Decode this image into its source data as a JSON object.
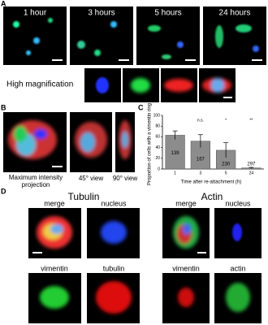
{
  "figure": {
    "panel_labels": [
      "A",
      "B",
      "C",
      "D"
    ],
    "time_labels": [
      "1 hour",
      "3 hours",
      "5 hours",
      "24 hours"
    ],
    "high_magnification": "High magnification",
    "view_labels": [
      "Maximum intensity projection",
      "45° view",
      "90° view"
    ],
    "tubulin": {
      "title": "Tubulin",
      "labels": [
        "merge",
        "nucleus",
        "vimentin",
        "tubulin"
      ]
    },
    "actin": {
      "title": "Actin",
      "labels": [
        "merge",
        "nucleus",
        "vimentin",
        "actin"
      ]
    }
  },
  "chart_data": {
    "type": "bar",
    "y_label": "Proportion of cells with a vimentin ring (%)",
    "x_label": "Time after re-attachment (h)",
    "categories": [
      "1",
      "3",
      "5",
      "24"
    ],
    "values": [
      63,
      52,
      35,
      2
    ],
    "errors": [
      8,
      12,
      14,
      1
    ],
    "n": [
      139,
      167,
      230,
      297
    ],
    "significance": [
      null,
      "n.s.",
      "*",
      "**"
    ],
    "color": "#8c8c8c",
    "ylim": [
      0,
      100
    ],
    "yticks": [
      0,
      20,
      40,
      60,
      80,
      100
    ]
  }
}
